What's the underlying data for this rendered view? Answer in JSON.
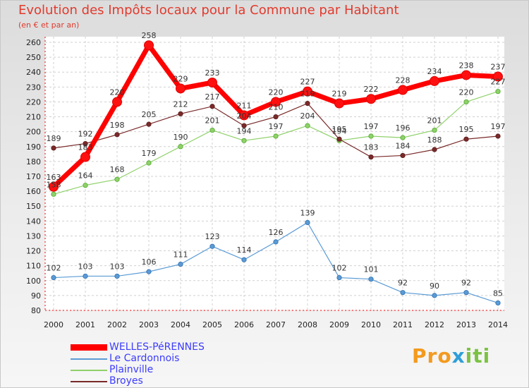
{
  "chart_data": {
    "type": "line",
    "title": "Evolution des Impôts locaux pour la Commune par Habitant",
    "subtitle": "(en € et par an)",
    "categories": [
      "2000",
      "2001",
      "2002",
      "2003",
      "2004",
      "2005",
      "2006",
      "2007",
      "2008",
      "2009",
      "2010",
      "2011",
      "2012",
      "2013",
      "2014"
    ],
    "ylim": [
      80,
      260
    ],
    "yticks": [
      80,
      90,
      100,
      110,
      120,
      130,
      140,
      150,
      160,
      170,
      180,
      190,
      200,
      210,
      220,
      230,
      240,
      250,
      260
    ],
    "grid": true,
    "legend_position": "bottom-left",
    "series": [
      {
        "name": "WELLES-PéRENNES",
        "color": "#ff0000",
        "values": [
          163,
          183,
          220,
          258,
          229,
          233,
          211,
          220,
          227,
          219,
          222,
          228,
          234,
          238,
          237
        ]
      },
      {
        "name": "Le Cardonnois",
        "color": "#5b9bd5",
        "values": [
          102,
          103,
          103,
          106,
          111,
          123,
          114,
          126,
          139,
          102,
          101,
          92,
          90,
          92,
          85
        ]
      },
      {
        "name": "Plainville",
        "color": "#8fd16a",
        "values": [
          158,
          164,
          168,
          179,
          190,
          201,
          194,
          197,
          204,
          194,
          197,
          196,
          201,
          220,
          227
        ]
      },
      {
        "name": "Broyes",
        "color": "#7a2a2a",
        "values": [
          189,
          192,
          198,
          205,
          212,
          217,
          204,
          210,
          219,
          195,
          183,
          184,
          188,
          195,
          197
        ]
      }
    ]
  },
  "logo": {
    "text": "Proxiti",
    "parts": [
      "Pro",
      "x",
      "iti"
    ]
  }
}
